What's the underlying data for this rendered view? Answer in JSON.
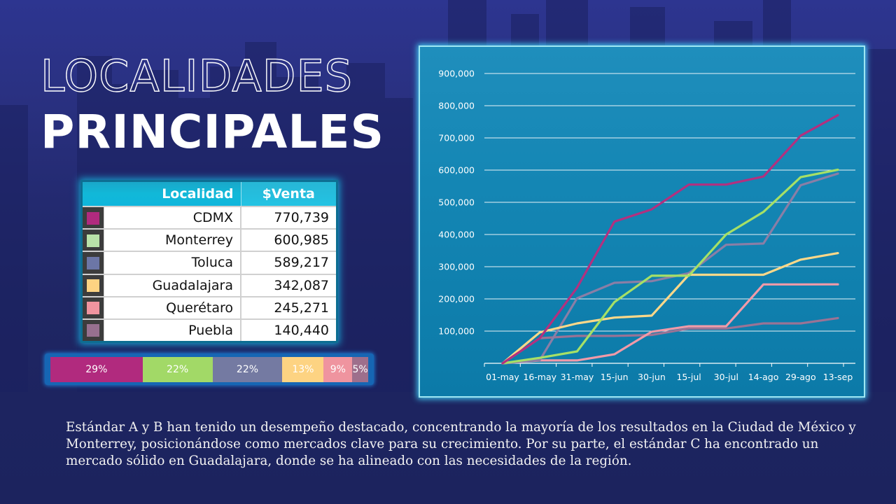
{
  "title": {
    "line1": "LOCALIDADES",
    "line2": "PRINCIPALES"
  },
  "table": {
    "headers": {
      "locality": "Localidad",
      "sales": "$Venta"
    },
    "rows": [
      {
        "name": "CDMX",
        "value": "770,739",
        "color": "#b12a7e"
      },
      {
        "name": "Monterrey",
        "value": "600,985",
        "color": "#b9e2a8"
      },
      {
        "name": "Toluca",
        "value": "589,217",
        "color": "#6c76a6"
      },
      {
        "name": "Guadalajara",
        "value": "342,087",
        "color": "#fdd382"
      },
      {
        "name": "Querétaro",
        "value": "245,271",
        "color": "#f0949f"
      },
      {
        "name": "Puebla",
        "value": "140,440",
        "color": "#97708f"
      }
    ]
  },
  "share_bar": {
    "segments": [
      {
        "label": "29%",
        "percent": 29,
        "color": "#b12a7e"
      },
      {
        "label": "22%",
        "percent": 22,
        "color": "#a2d967"
      },
      {
        "label": "22%",
        "percent": 22,
        "color": "#747aa2"
      },
      {
        "label": "13%",
        "percent": 13,
        "color": "#fdd382"
      },
      {
        "label": "9%",
        "percent": 9,
        "color": "#ef949f"
      },
      {
        "label": "5%",
        "percent": 5,
        "color": "#9e6f8c"
      }
    ]
  },
  "chart_data": {
    "type": "line",
    "title": "",
    "xlabel": "",
    "ylabel": "",
    "x": [
      "01-may",
      "16-may",
      "31-may",
      "15-jun",
      "30-jun",
      "15-jul",
      "30-jul",
      "14-ago",
      "29-ago",
      "13-sep"
    ],
    "yticks": [
      "100,000",
      "200,000",
      "300,000",
      "400,000",
      "500,000",
      "600,000",
      "700,000",
      "800,000",
      "900,000"
    ],
    "ylim": [
      0,
      900000
    ],
    "grid": true,
    "legend": "none",
    "series": [
      {
        "name": "CDMX",
        "color": "#b3307f",
        "values": [
          0,
          78000,
          235000,
          440000,
          478000,
          555000,
          555000,
          580000,
          707000,
          770739
        ]
      },
      {
        "name": "Monterrey",
        "color": "#a6e066",
        "values": [
          0,
          17000,
          37000,
          190000,
          272000,
          272000,
          400000,
          470000,
          578000,
          600985
        ]
      },
      {
        "name": "Toluca",
        "color": "#8a7ea6",
        "values": [
          0,
          10000,
          202000,
          250000,
          255000,
          280000,
          368000,
          372000,
          553000,
          589217
        ]
      },
      {
        "name": "Guadalajara",
        "color": "#fdd889",
        "values": [
          0,
          96000,
          124000,
          142000,
          148000,
          275000,
          275000,
          275000,
          322000,
          342087
        ]
      },
      {
        "name": "Querétaro",
        "color": "#f19aa8",
        "values": [
          0,
          9000,
          9000,
          28000,
          98000,
          115000,
          115000,
          245000,
          245000,
          245271
        ]
      },
      {
        "name": "Puebla",
        "color": "#9a7395",
        "values": [
          0,
          78000,
          85000,
          85000,
          88000,
          108000,
          108000,
          124000,
          124000,
          140440
        ]
      }
    ]
  },
  "description": "Estándar A y B han tenido un desempeño destacado, concentrando la mayoría de los resultados en la Ciudad de México y Monterrey, posicionándose como mercados clave para su crecimiento. Por su parte, el estándar C ha encontrado un mercado sólido en Guadalajara, donde se ha alineado con las necesidades de la región."
}
